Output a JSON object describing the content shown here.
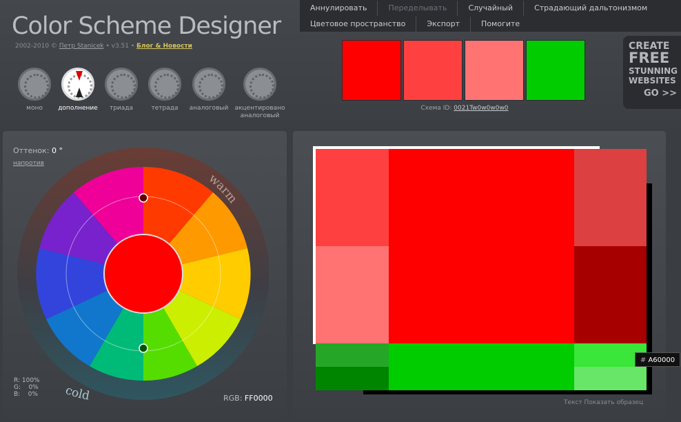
{
  "app": {
    "logo": "Color Scheme Designer",
    "years": "2002-2010 ©",
    "author": "Петр Stanicek",
    "version": "• v3.51 •",
    "blog": "Блог & Новости"
  },
  "menu": {
    "row1": [
      "Аннулировать",
      "Переделывать",
      "Случайный",
      "Страдающий дальтонизмом"
    ],
    "row2": [
      "Цветовое пространство",
      "Экспорт",
      "Помогите"
    ],
    "disabled": [
      "Переделывать"
    ]
  },
  "modes": [
    {
      "label": "моно",
      "active": false
    },
    {
      "label": "дополнение",
      "active": true
    },
    {
      "label": "триада",
      "active": false
    },
    {
      "label": "тетрада",
      "active": false
    },
    {
      "label": "аналоговый",
      "active": false
    },
    {
      "label": "акцентировано аналоговый",
      "active": false
    }
  ],
  "swatches": [
    "#FF0000",
    "#FF4040",
    "#FF7373",
    "#00CC00"
  ],
  "scheme": {
    "label": "Схема ID:",
    "id": "0021Tw0w0w0w0"
  },
  "ad": {
    "l1": "CREATE",
    "l2": "FREE",
    "l3": "STUNNING",
    "l4": "WEBSITES",
    "l5": "GO >>"
  },
  "hue": {
    "label": "Оттенок:",
    "value": "0 °",
    "reverse": "напротив",
    "warm": "warm",
    "cold": "cold"
  },
  "rgb": {
    "percent_lines": "R: 100%\nG:    0%\nB:    0%",
    "label": "RGB:",
    "hex": "FF0000"
  },
  "preview": {
    "main": "#FF0000",
    "tl": "#FF4040",
    "bl": "#FF7373",
    "tr": "#DD4040",
    "mr": "#A60000",
    "green_main": "#00CC00",
    "green_tl": "#26A626",
    "green_bl": "#008500",
    "green_tr": "#39E639",
    "green_br": "#67E667"
  },
  "tooltip": {
    "hash": "#",
    "hex": "A60000"
  },
  "text_sample": "Текст Показать образец"
}
